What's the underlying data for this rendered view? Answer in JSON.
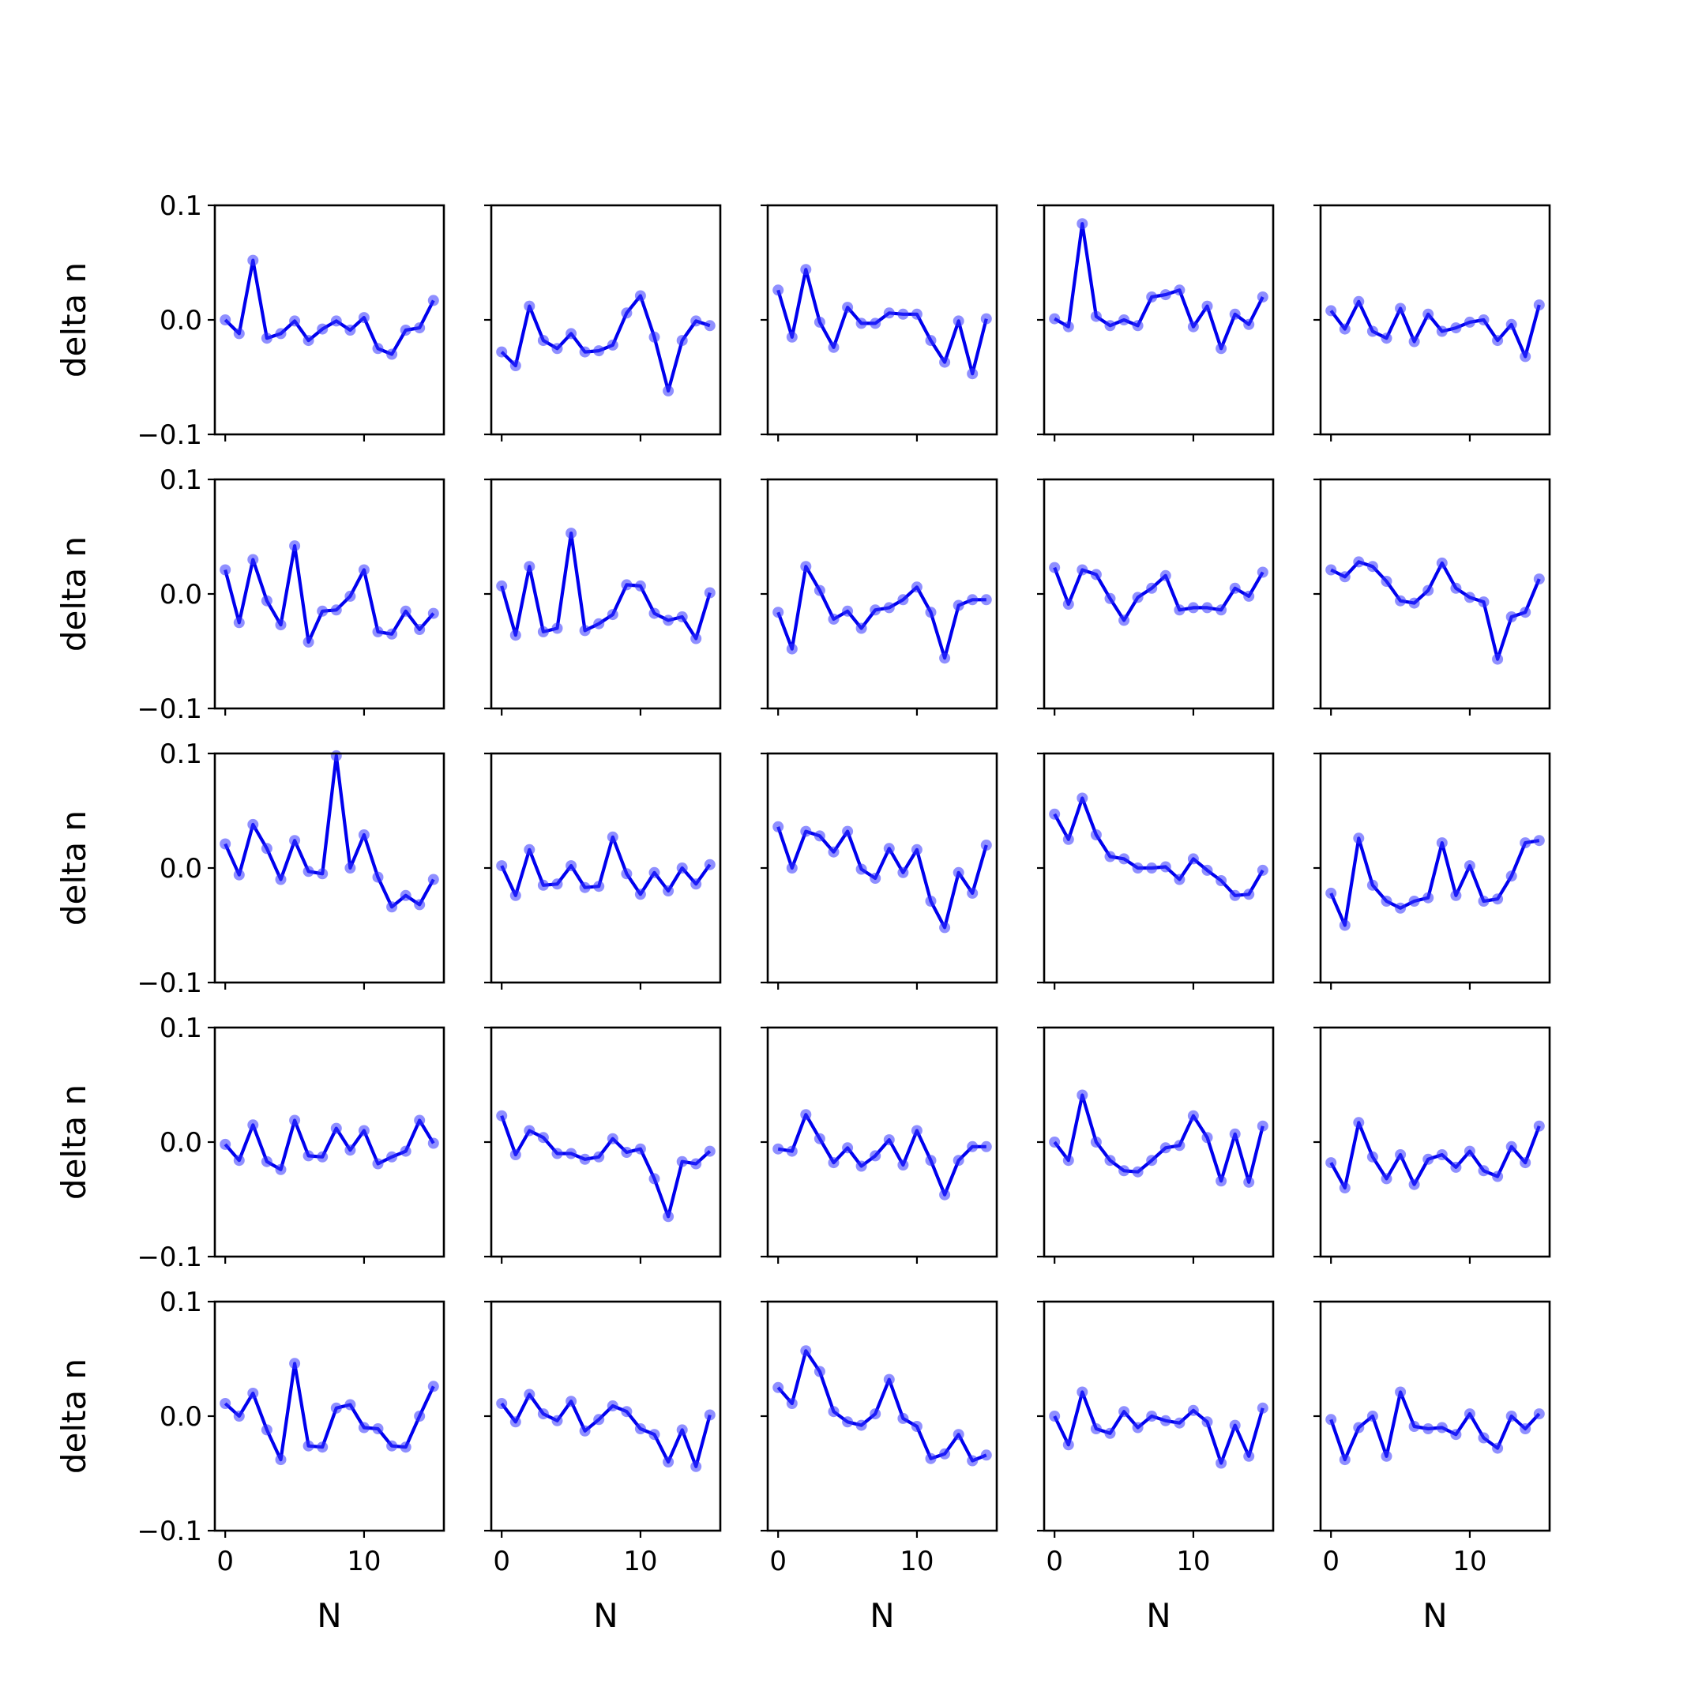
{
  "chart_data": {
    "type": "line",
    "layout": "grid",
    "rows": 5,
    "cols": 5,
    "xlabel": "N",
    "ylabel": "delta n",
    "x": [
      0,
      1,
      2,
      3,
      4,
      5,
      6,
      7,
      8,
      9,
      10,
      11,
      12,
      13,
      14,
      15
    ],
    "xlim": [
      -0.75,
      15.75
    ],
    "ylim": [
      -0.1,
      0.1
    ],
    "xticks": [
      0,
      10
    ],
    "xtick_labels": [
      "0",
      "10"
    ],
    "yticks": [
      -0.1,
      0.0,
      0.1
    ],
    "ytick_labels": [
      "−0.1",
      "0.0",
      "0.1"
    ],
    "line_color": "#0000ee",
    "marker_color": "#3333ff",
    "panels": [
      {
        "row": 0,
        "col": 0,
        "values": [
          0.0,
          -0.012,
          0.052,
          -0.016,
          -0.012,
          -0.001,
          -0.018,
          -0.008,
          -0.001,
          -0.009,
          0.002,
          -0.025,
          -0.03,
          -0.009,
          -0.007,
          0.017
        ]
      },
      {
        "row": 0,
        "col": 1,
        "values": [
          -0.028,
          -0.04,
          0.012,
          -0.018,
          -0.025,
          -0.012,
          -0.028,
          -0.027,
          -0.022,
          0.006,
          0.021,
          -0.015,
          -0.062,
          -0.018,
          -0.001,
          -0.005
        ]
      },
      {
        "row": 0,
        "col": 2,
        "values": [
          0.026,
          -0.015,
          0.044,
          -0.002,
          -0.024,
          0.011,
          -0.003,
          -0.003,
          0.006,
          0.005,
          0.005,
          -0.018,
          -0.037,
          -0.001,
          -0.047,
          0.001
        ]
      },
      {
        "row": 0,
        "col": 3,
        "values": [
          0.001,
          -0.006,
          0.084,
          0.003,
          -0.005,
          0.0,
          -0.005,
          0.02,
          0.022,
          0.026,
          -0.006,
          0.012,
          -0.025,
          0.005,
          -0.004,
          0.02
        ]
      },
      {
        "row": 0,
        "col": 4,
        "values": [
          0.008,
          -0.008,
          0.016,
          -0.01,
          -0.016,
          0.01,
          -0.019,
          0.005,
          -0.01,
          -0.007,
          -0.002,
          0.0,
          -0.018,
          -0.004,
          -0.032,
          0.013
        ]
      },
      {
        "row": 1,
        "col": 0,
        "values": [
          0.021,
          -0.025,
          0.03,
          -0.006,
          -0.027,
          0.042,
          -0.042,
          -0.015,
          -0.014,
          -0.002,
          0.021,
          -0.033,
          -0.035,
          -0.015,
          -0.031,
          -0.017
        ]
      },
      {
        "row": 1,
        "col": 1,
        "values": [
          0.007,
          -0.036,
          0.024,
          -0.033,
          -0.03,
          0.053,
          -0.032,
          -0.026,
          -0.018,
          0.008,
          0.007,
          -0.017,
          -0.023,
          -0.02,
          -0.039,
          0.001
        ]
      },
      {
        "row": 1,
        "col": 2,
        "values": [
          -0.016,
          -0.048,
          0.024,
          0.003,
          -0.022,
          -0.015,
          -0.03,
          -0.014,
          -0.012,
          -0.005,
          0.006,
          -0.016,
          -0.056,
          -0.01,
          -0.005,
          -0.005
        ]
      },
      {
        "row": 1,
        "col": 3,
        "values": [
          0.023,
          -0.009,
          0.021,
          0.017,
          -0.004,
          -0.023,
          -0.003,
          0.005,
          0.016,
          -0.014,
          -0.012,
          -0.012,
          -0.014,
          0.005,
          -0.002,
          0.019
        ]
      },
      {
        "row": 1,
        "col": 4,
        "values": [
          0.021,
          0.015,
          0.028,
          0.024,
          0.011,
          -0.006,
          -0.008,
          0.003,
          0.027,
          0.005,
          -0.003,
          -0.007,
          -0.057,
          -0.02,
          -0.016,
          0.013
        ]
      },
      {
        "row": 2,
        "col": 0,
        "values": [
          0.021,
          -0.006,
          0.038,
          0.017,
          -0.01,
          0.024,
          -0.003,
          -0.005,
          0.098,
          0.0,
          0.029,
          -0.008,
          -0.034,
          -0.024,
          -0.032,
          -0.01
        ]
      },
      {
        "row": 2,
        "col": 1,
        "values": [
          0.002,
          -0.024,
          0.016,
          -0.015,
          -0.014,
          0.002,
          -0.017,
          -0.016,
          0.027,
          -0.005,
          -0.023,
          -0.004,
          -0.02,
          0.0,
          -0.014,
          0.003
        ]
      },
      {
        "row": 2,
        "col": 2,
        "values": [
          0.036,
          0.0,
          0.032,
          0.028,
          0.014,
          0.032,
          -0.001,
          -0.009,
          0.017,
          -0.004,
          0.016,
          -0.029,
          -0.052,
          -0.004,
          -0.022,
          0.02
        ]
      },
      {
        "row": 2,
        "col": 3,
        "values": [
          0.047,
          0.025,
          0.061,
          0.029,
          0.01,
          0.008,
          0.0,
          0.0,
          0.001,
          -0.01,
          0.008,
          -0.002,
          -0.011,
          -0.024,
          -0.023,
          -0.002
        ]
      },
      {
        "row": 2,
        "col": 4,
        "values": [
          -0.022,
          -0.05,
          0.026,
          -0.015,
          -0.029,
          -0.035,
          -0.029,
          -0.026,
          0.022,
          -0.024,
          0.002,
          -0.029,
          -0.027,
          -0.007,
          0.022,
          0.024
        ]
      },
      {
        "row": 3,
        "col": 0,
        "values": [
          -0.002,
          -0.016,
          0.015,
          -0.017,
          -0.024,
          0.019,
          -0.012,
          -0.013,
          0.012,
          -0.007,
          0.01,
          -0.019,
          -0.013,
          -0.008,
          0.019,
          -0.001
        ]
      },
      {
        "row": 3,
        "col": 1,
        "values": [
          0.023,
          -0.011,
          0.01,
          0.004,
          -0.01,
          -0.01,
          -0.015,
          -0.013,
          0.003,
          -0.009,
          -0.006,
          -0.032,
          -0.065,
          -0.017,
          -0.019,
          -0.008
        ]
      },
      {
        "row": 3,
        "col": 2,
        "values": [
          -0.006,
          -0.008,
          0.024,
          0.003,
          -0.018,
          -0.005,
          -0.021,
          -0.012,
          0.002,
          -0.02,
          0.01,
          -0.016,
          -0.046,
          -0.016,
          -0.004,
          -0.004
        ]
      },
      {
        "row": 3,
        "col": 3,
        "values": [
          0.0,
          -0.016,
          0.041,
          0.0,
          -0.016,
          -0.025,
          -0.026,
          -0.016,
          -0.005,
          -0.003,
          0.023,
          0.004,
          -0.034,
          0.007,
          -0.035,
          0.014
        ]
      },
      {
        "row": 3,
        "col": 4,
        "values": [
          -0.018,
          -0.04,
          0.017,
          -0.013,
          -0.032,
          -0.011,
          -0.037,
          -0.015,
          -0.011,
          -0.022,
          -0.008,
          -0.025,
          -0.03,
          -0.004,
          -0.018,
          0.014
        ]
      },
      {
        "row": 4,
        "col": 0,
        "values": [
          0.011,
          0.0,
          0.02,
          -0.012,
          -0.038,
          0.046,
          -0.026,
          -0.027,
          0.007,
          0.01,
          -0.01,
          -0.011,
          -0.026,
          -0.027,
          0.0,
          0.026
        ]
      },
      {
        "row": 4,
        "col": 1,
        "values": [
          0.011,
          -0.005,
          0.019,
          0.002,
          -0.004,
          0.013,
          -0.013,
          -0.003,
          0.009,
          0.004,
          -0.011,
          -0.016,
          -0.04,
          -0.012,
          -0.044,
          0.001
        ]
      },
      {
        "row": 4,
        "col": 2,
        "values": [
          0.025,
          0.011,
          0.057,
          0.039,
          0.004,
          -0.005,
          -0.008,
          0.002,
          0.032,
          -0.002,
          -0.009,
          -0.037,
          -0.033,
          -0.016,
          -0.039,
          -0.034
        ]
      },
      {
        "row": 4,
        "col": 3,
        "values": [
          0.0,
          -0.025,
          0.021,
          -0.011,
          -0.015,
          0.004,
          -0.01,
          0.0,
          -0.004,
          -0.006,
          0.005,
          -0.005,
          -0.041,
          -0.008,
          -0.035,
          0.007
        ]
      },
      {
        "row": 4,
        "col": 4,
        "values": [
          -0.003,
          -0.038,
          -0.01,
          0.0,
          -0.035,
          0.021,
          -0.009,
          -0.011,
          -0.01,
          -0.016,
          0.002,
          -0.019,
          -0.028,
          0.0,
          -0.011,
          0.002
        ]
      }
    ]
  }
}
